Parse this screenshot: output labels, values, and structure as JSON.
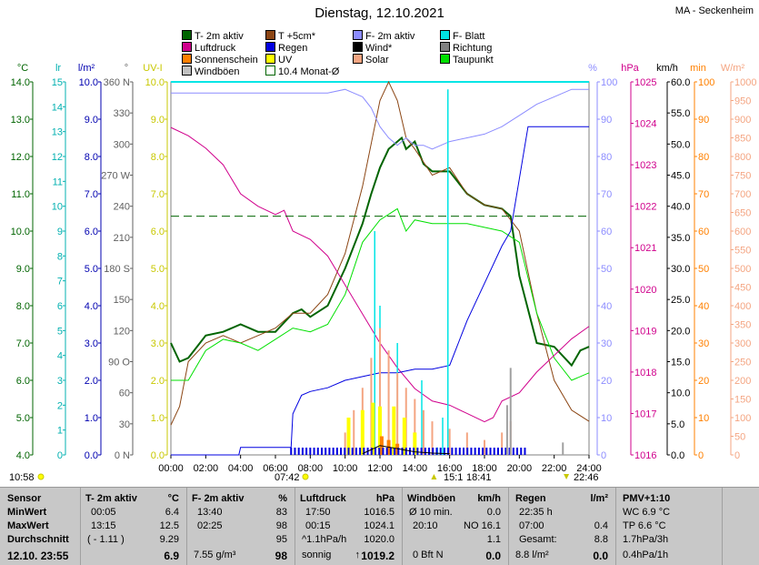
{
  "header": {
    "title": "Dienstag, 12.10.2021",
    "station": "MA - Seckenheim"
  },
  "legend": [
    {
      "label": "T- 2m aktiv",
      "color": "#006400"
    },
    {
      "label": "T +5cm*",
      "color": "#8b4513"
    },
    {
      "label": "F- 2m aktiv",
      "color": "#8c8cff"
    },
    {
      "label": "F- Blatt",
      "color": "#00e5e5"
    },
    {
      "label": "Luftdruck",
      "color": "#d0008c"
    },
    {
      "label": "Regen",
      "color": "#0000e0"
    },
    {
      "label": "Wind*",
      "color": "#000000"
    },
    {
      "label": "Richtung",
      "color": "#808080"
    },
    {
      "label": "Sonnenschein",
      "color": "#ff8000"
    },
    {
      "label": "UV",
      "color": "#ffff00"
    },
    {
      "label": "Solar",
      "color": "#f4a582"
    },
    {
      "label": "Taupunkt",
      "color": "#00e000"
    },
    {
      "label": "Windböen",
      "color": "#c0c0c0"
    },
    {
      "label": "10.4 Monat-Ø",
      "color": "#ffffff"
    }
  ],
  "chart_data": {
    "type": "line",
    "x_ticks": [
      "00:00",
      "02:00",
      "04:00",
      "06:00",
      "08:00",
      "10:00",
      "12:00",
      "14:00",
      "16:00",
      "18:00",
      "20:00",
      "22:00",
      "24:00"
    ],
    "axes": {
      "temp": {
        "unit": "°C",
        "ticks": [
          "14.0",
          "13.0",
          "12.0",
          "11.0",
          "10.0",
          "9.0",
          "8.0",
          "7.0",
          "6.0",
          "5.0",
          "4.0"
        ]
      },
      "lr": {
        "unit": "lr",
        "ticks": [
          "15",
          "14",
          "13",
          "12",
          "11",
          "10",
          "9",
          "8",
          "7",
          "6",
          "5",
          "4",
          "3",
          "2",
          "1",
          "0"
        ]
      },
      "rain": {
        "unit": "l/m²",
        "ticks": [
          "10.0",
          "9.0",
          "8.0",
          "7.0",
          "6.0",
          "5.0",
          "4.0",
          "3.0",
          "2.0",
          "1.0",
          "0.0"
        ]
      },
      "dir": {
        "unit": "°",
        "ticks": [
          "360 N",
          "330",
          "300",
          "270 W",
          "240",
          "210",
          "180 S",
          "150",
          "120",
          "90 O",
          "60",
          "30",
          "0 N"
        ]
      },
      "uv": {
        "unit": "UV-I",
        "ticks": [
          "10.0",
          "9.0",
          "8.0",
          "7.0",
          "6.0",
          "5.0",
          "4.0",
          "3.0",
          "2.0",
          "1.0",
          "0.0"
        ]
      },
      "hum": {
        "unit": "%",
        "ticks": [
          "100",
          "90",
          "80",
          "70",
          "60",
          "50",
          "40",
          "30",
          "20",
          "10",
          "0"
        ]
      },
      "pressure": {
        "unit": "hPa",
        "ticks": [
          "1025",
          "1024",
          "1023",
          "1022",
          "1021",
          "1020",
          "1019",
          "1018",
          "1017",
          "1016"
        ]
      },
      "wind": {
        "unit": "km/h",
        "ticks": [
          "60.0",
          "55.0",
          "50.0",
          "45.0",
          "40.0",
          "35.0",
          "30.0",
          "25.0",
          "20.0",
          "15.0",
          "10.0",
          "5.0",
          "0.0"
        ]
      },
      "sun": {
        "unit": "min",
        "ticks": [
          "100",
          "90",
          "80",
          "70",
          "60",
          "50",
          "40",
          "30",
          "20",
          "10",
          "0"
        ]
      },
      "solar": {
        "unit": "W/m²",
        "ticks": [
          "1000",
          "950",
          "900",
          "850",
          "800",
          "750",
          "700",
          "650",
          "600",
          "550",
          "500",
          "450",
          "400",
          "350",
          "300",
          "250",
          "200",
          "150",
          "100",
          "50",
          "0"
        ]
      }
    },
    "series": [
      {
        "name": "T- 2m aktiv",
        "color": "#006400",
        "axis": [
          4,
          14
        ],
        "x": [
          0,
          0.5,
          1,
          2,
          3,
          4,
          5,
          6,
          7,
          7.5,
          8,
          9,
          10,
          11,
          11.5,
          12,
          12.5,
          13,
          13.25,
          13.5,
          14,
          14.5,
          15,
          16,
          17,
          18,
          19,
          19.5,
          20,
          20.5,
          21,
          22,
          23,
          23.5,
          24
        ],
        "y": [
          7.0,
          6.5,
          6.6,
          7.2,
          7.3,
          7.5,
          7.3,
          7.3,
          7.8,
          7.9,
          7.7,
          8.0,
          9.0,
          10.2,
          11.0,
          11.7,
          12.2,
          12.4,
          12.5,
          12.2,
          12.4,
          11.8,
          11.6,
          11.6,
          11.0,
          10.7,
          10.6,
          10.4,
          8.8,
          7.9,
          7.0,
          6.9,
          6.4,
          6.8,
          6.9
        ]
      },
      {
        "name": "T +5cm*",
        "color": "#8b4513",
        "axis": [
          4,
          14
        ],
        "x": [
          0,
          0.5,
          1,
          2,
          3,
          4,
          5,
          6,
          7,
          8,
          9,
          10,
          11,
          12,
          12.5,
          13,
          13.5,
          14,
          15,
          16,
          17,
          18,
          19,
          20,
          21,
          22,
          23,
          24
        ],
        "y": [
          4.8,
          5.3,
          6.5,
          7.0,
          7.2,
          7.0,
          7.2,
          7.4,
          7.8,
          7.8,
          8.3,
          9.4,
          11.2,
          13.5,
          14.0,
          13.5,
          12.5,
          12.2,
          11.5,
          11.7,
          11.0,
          10.7,
          10.6,
          10.0,
          7.8,
          6.0,
          5.2,
          4.9
        ]
      },
      {
        "name": "Taupunkt",
        "color": "#00e000",
        "axis": [
          4,
          14
        ],
        "x": [
          0,
          1,
          2,
          3,
          4,
          5,
          6,
          7,
          8,
          9,
          10,
          11,
          12,
          13,
          13.5,
          14,
          15,
          16,
          17,
          18,
          19,
          20,
          21,
          22,
          23,
          24
        ],
        "y": [
          6.0,
          6.0,
          6.8,
          7.1,
          7.0,
          6.8,
          7.1,
          7.4,
          7.3,
          7.5,
          8.3,
          9.7,
          10.3,
          10.6,
          10.0,
          10.3,
          10.2,
          10.2,
          10.2,
          10.1,
          10.0,
          9.7,
          7.8,
          6.6,
          6.0,
          6.2
        ]
      },
      {
        "name": "F- 2m aktiv",
        "color": "#8c8cff",
        "axis": [
          0,
          100
        ],
        "x": [
          0,
          1,
          2,
          3,
          4,
          5,
          6,
          7,
          8,
          9,
          10,
          10.5,
          11,
          11.5,
          12,
          12.5,
          13,
          13.5,
          14,
          14.5,
          15,
          16,
          17,
          18,
          19,
          20,
          21,
          22,
          23,
          24
        ],
        "y": [
          97,
          97,
          97,
          97,
          97,
          97,
          97,
          97,
          97,
          97,
          98,
          97,
          96,
          93,
          88,
          85,
          83,
          85,
          83,
          83,
          82,
          84,
          85,
          86,
          88,
          91,
          94,
          96,
          98,
          98
        ]
      },
      {
        "name": "Luftdruck",
        "color": "#d0008c",
        "axis": [
          1016,
          1025
        ],
        "x": [
          0,
          1,
          2,
          3,
          4,
          5,
          6,
          6.5,
          7,
          8,
          9,
          10,
          11,
          12,
          13,
          14,
          15,
          16,
          17,
          18,
          18.5,
          19,
          20,
          21,
          22,
          23,
          24
        ],
        "y": [
          1023.9,
          1023.7,
          1023.4,
          1023.0,
          1022.3,
          1022.0,
          1021.8,
          1021.9,
          1021.4,
          1021.2,
          1020.8,
          1020.1,
          1019.4,
          1018.7,
          1018.1,
          1017.6,
          1017.3,
          1017.2,
          1017.0,
          1016.8,
          1016.9,
          1017.3,
          1017.5,
          1018.0,
          1018.4,
          1018.8,
          1019.1
        ]
      },
      {
        "name": "Regen",
        "color": "#0000e0",
        "axis": [
          0,
          10
        ],
        "x": [
          0,
          1,
          2,
          3,
          3.9,
          4,
          5,
          6,
          6.9,
          7,
          7.5,
          8,
          9,
          10,
          11,
          12,
          13,
          14,
          15,
          16,
          16.5,
          17,
          18,
          19,
          19.5,
          20,
          20.5,
          21,
          22,
          23,
          24
        ],
        "y": [
          0,
          0,
          0,
          0,
          0,
          0.2,
          0.2,
          0.2,
          0.2,
          1.1,
          1.6,
          1.7,
          1.8,
          2.0,
          2.1,
          2.2,
          2.2,
          2.3,
          2.3,
          2.4,
          3.0,
          3.6,
          4.6,
          5.6,
          6.0,
          7.4,
          8.8,
          8.8,
          8.8,
          8.8,
          8.8
        ]
      },
      {
        "name": "10.4 Monat-Ø",
        "color": "#006400",
        "axis": [
          4,
          14
        ],
        "x": [
          0,
          24
        ],
        "y": [
          10.4,
          10.4
        ]
      }
    ]
  },
  "sun_info": {
    "left": "10:58",
    "mid": "07:42",
    "rise": "15:1",
    "set": "18:41",
    "end": "22:46"
  },
  "table": {
    "sensor": {
      "h": "Sensor",
      "min": "MinWert",
      "max": "MaxWert",
      "avg": "Durchschnitt",
      "now": "12.10. 23:55"
    },
    "temp": {
      "h": "T- 2m aktiv",
      "unit": "°C",
      "min_t": "00:05",
      "min_v": "6.4",
      "max_t": "13:15",
      "max_v": "12.5",
      "avg_t": "( - 1.11 )",
      "avg_v": "9.29",
      "now": "6.9"
    },
    "hum": {
      "h": "F- 2m aktiv",
      "unit": "%",
      "min_t": "13:40",
      "min_v": "83",
      "max_t": "02:25",
      "max_v": "98",
      "avg_v": "95",
      "now_extra": "7.55 g/m³",
      "now": "98"
    },
    "press": {
      "h": "Luftdruck",
      "unit": "hPa",
      "min_t": "17:50",
      "min_v": "1016.5",
      "max_t": "00:15",
      "max_v": "1024.1",
      "avg_t": "^1.1hPa/h",
      "avg_v": "1020.0",
      "now_t": "sonnig",
      "now": "1019.2"
    },
    "wind": {
      "h": "Windböen",
      "unit": "km/h",
      "min_t": "Ø 10 min.",
      "min_v": "0.0",
      "max_t": "20:10",
      "max_v": "NO 16.1",
      "avg_v": "1.1",
      "now_t": "0 Bft N",
      "now": "0.0"
    },
    "rain": {
      "h": "Regen",
      "unit": "l/m²",
      "min_t": "22:35 h",
      "max_t": "07:00",
      "max_v": "0.4",
      "avg_t": "Gesamt:",
      "avg_v": "8.8",
      "now_t": "8.8 l/m²",
      "now": "0.0"
    },
    "pmv": {
      "h": "PMV+1:10",
      "l1": "WC 6.9 °C",
      "l2": "TP 6.6 °C",
      "l3": "1.7hPa/3h",
      "l4": "0.4hPa/1h"
    }
  }
}
